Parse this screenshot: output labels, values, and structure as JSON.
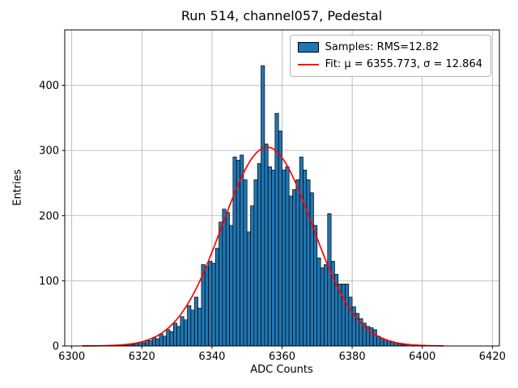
{
  "chart_data": {
    "type": "bar",
    "subtype": "histogram_with_gaussian_fit",
    "title": "Run 514, channel057, Pedestal",
    "xlabel": "ADC Counts",
    "ylabel": "Entries",
    "xlim": [
      6298,
      6422
    ],
    "ylim": [
      0,
      485
    ],
    "xticks": [
      6300,
      6320,
      6340,
      6360,
      6380,
      6400,
      6420
    ],
    "yticks": [
      0,
      100,
      200,
      300,
      400
    ],
    "grid": true,
    "legend_position": "upper right",
    "colors": {
      "bars": "#1f77b4",
      "bar_edge": "#000000",
      "fit": "#ff0000",
      "grid": "#b0b0b0"
    },
    "legend": {
      "samples_label": "Samples: RMS=12.82",
      "fit_label": "Fit: μ = 6355.773, σ = 12.864"
    },
    "fit": {
      "type": "gaussian",
      "mu": 6355.773,
      "sigma": 12.864,
      "amplitude": 305,
      "x_range": [
        6303,
        6406
      ]
    },
    "histogram": {
      "bin_start": 6314,
      "bin_width": 1,
      "counts": [
        2,
        1,
        3,
        2,
        4,
        6,
        5,
        9,
        8,
        13,
        11,
        18,
        15,
        25,
        22,
        35,
        30,
        45,
        40,
        62,
        55,
        75,
        58,
        125,
        122,
        130,
        127,
        150,
        190,
        210,
        205,
        185,
        290,
        285,
        293,
        255,
        175,
        215,
        255,
        280,
        430,
        310,
        275,
        270,
        357,
        330,
        270,
        275,
        230,
        240,
        255,
        290,
        270,
        255,
        235,
        185,
        135,
        120,
        125,
        203,
        130,
        110,
        95,
        95,
        95,
        75,
        60,
        50,
        42,
        35,
        30,
        28,
        25,
        15,
        12,
        10,
        8,
        6,
        5,
        3,
        2,
        2
      ]
    }
  }
}
